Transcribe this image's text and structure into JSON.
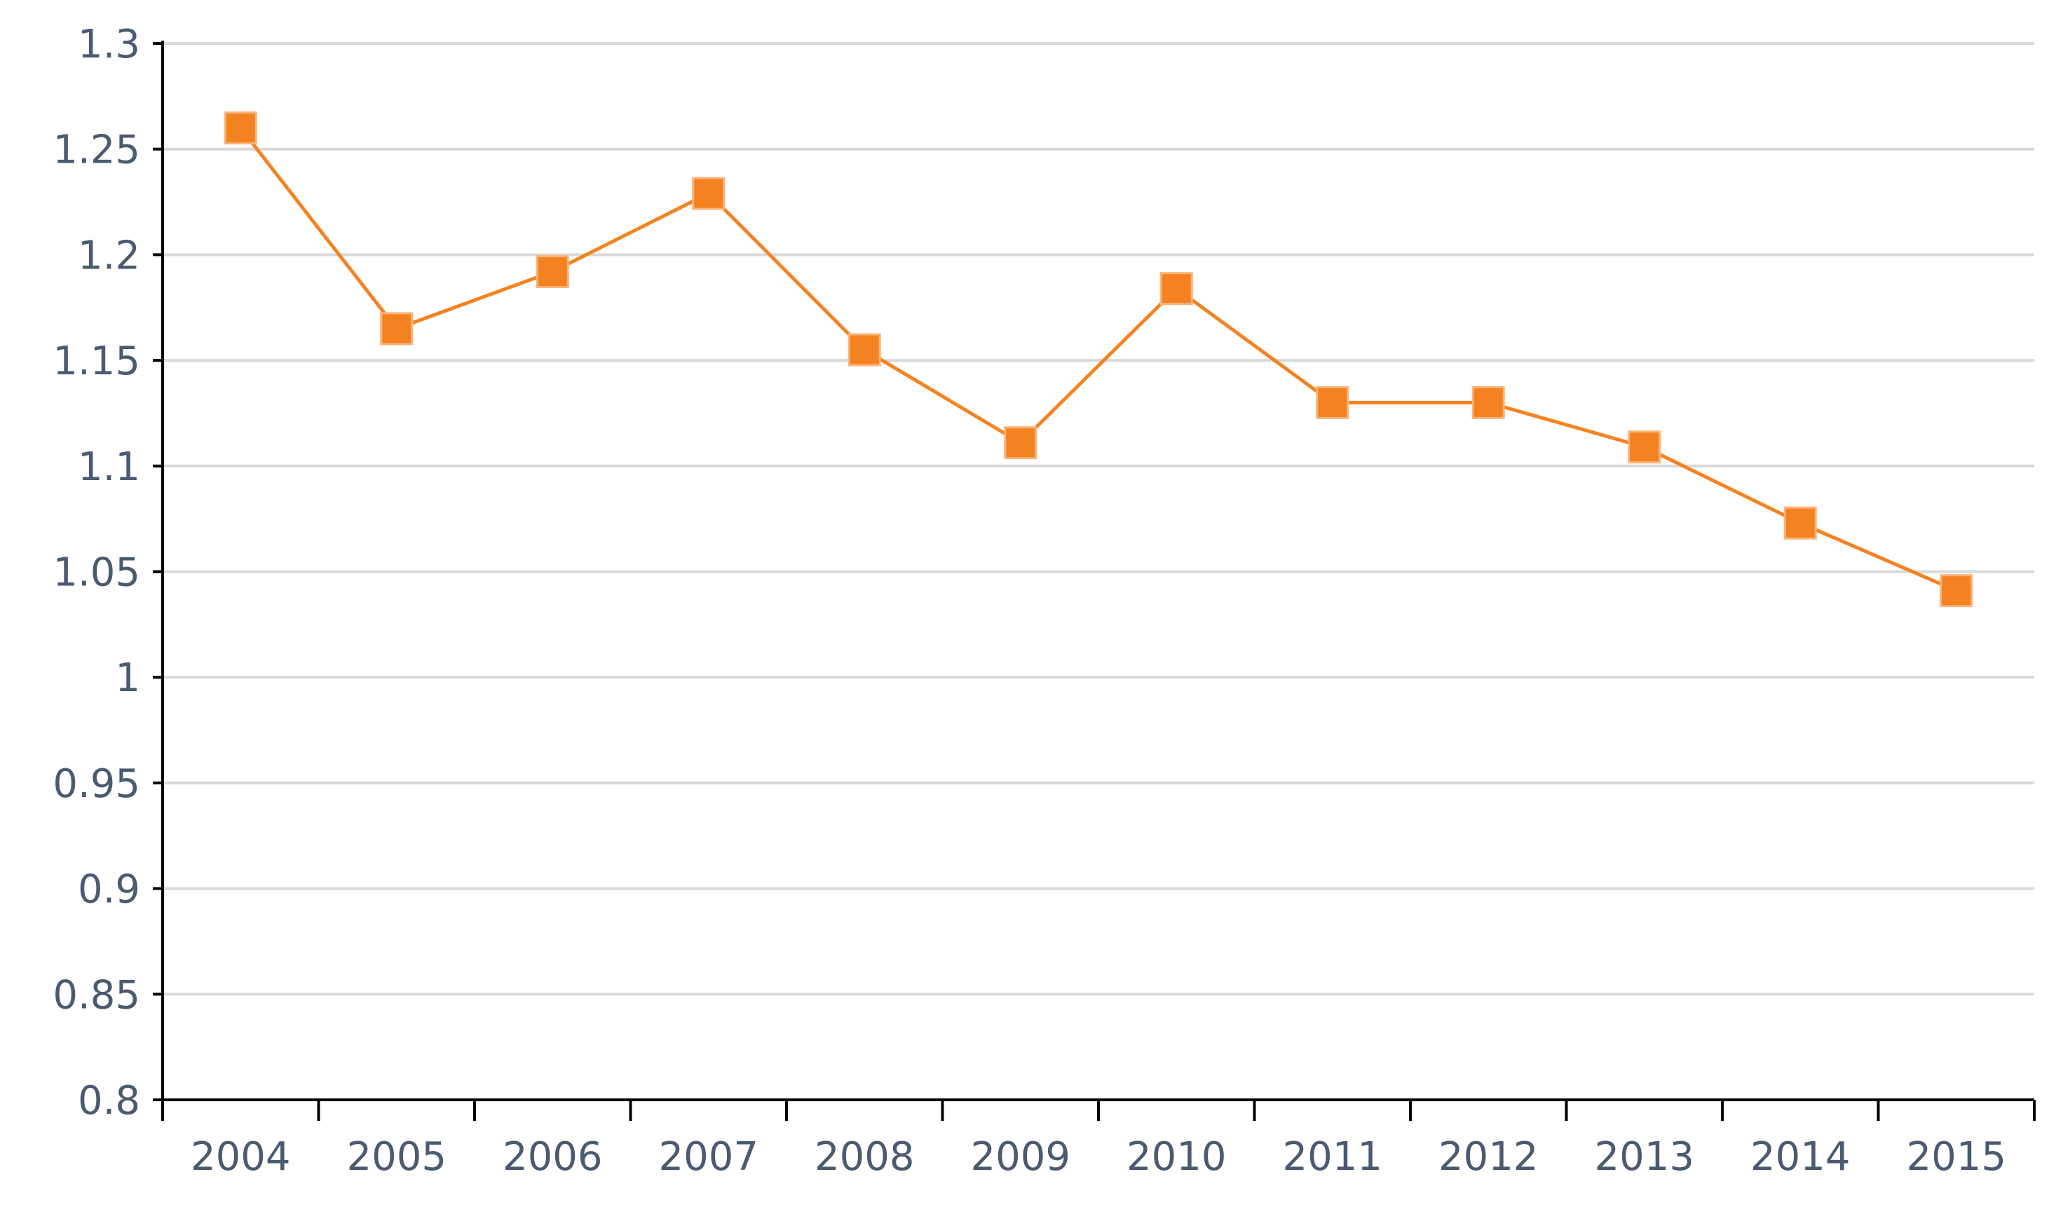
{
  "chart_data": {
    "type": "line",
    "title": "",
    "xlabel": "",
    "ylabel": "",
    "categories": [
      "2004",
      "2005",
      "2006",
      "2007",
      "2008",
      "2009",
      "2010",
      "2011",
      "2012",
      "2013",
      "2014",
      "2015"
    ],
    "series": [
      {
        "values": [
          1.26,
          1.165,
          1.192,
          1.229,
          1.155,
          1.111,
          1.184,
          1.13,
          1.13,
          1.109,
          1.073,
          1.041
        ]
      }
    ],
    "ylim": [
      0.8,
      1.3
    ],
    "yticks": [
      0.8,
      0.85,
      0.9,
      0.95,
      1.0,
      1.05,
      1.1,
      1.15,
      1.2,
      1.25,
      1.3
    ],
    "ytick_labels": [
      "0.8",
      "0.85",
      "0.9",
      "0.95",
      "1",
      "1.05",
      "1.1",
      "1.15",
      "1.2",
      "1.25",
      "1.3"
    ],
    "grid": true,
    "legend": "none",
    "colors": {
      "series": "#f58220",
      "marker": "#f58220",
      "grid": "#d9d9d9",
      "axis": "#000000",
      "tick_text": "#4a5a70"
    },
    "marker": "square"
  }
}
